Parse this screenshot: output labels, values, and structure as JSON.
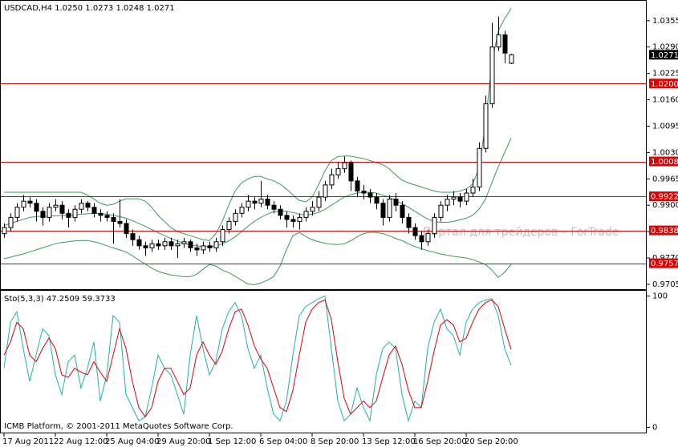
{
  "chart_data": [
    {
      "type": "candlestick",
      "title": "USDCAD,H4  1.0250 1.0273 1.0248 1.0271",
      "watermark": "Портал для трейдеров – ForTrade",
      "categories": [
        "17 Aug 2011",
        null,
        null,
        null,
        null,
        null,
        null,
        null,
        "22 Aug 12:00",
        null,
        null,
        null,
        null,
        null,
        null,
        null,
        "25 Aug 04:00",
        null,
        null,
        null,
        null,
        null,
        null,
        null,
        "29 Aug 20:00",
        null,
        null,
        null,
        null,
        null,
        null,
        null,
        "1 Sep 12:00",
        null,
        null,
        null,
        null,
        null,
        null,
        null,
        "6 Sep 04:00",
        null,
        null,
        null,
        null,
        null,
        null,
        null,
        "8 Sep 20:00",
        null,
        null,
        null,
        null,
        null,
        null,
        null,
        "13 Sep 12:00",
        null,
        null,
        null,
        null,
        null,
        null,
        null,
        "16 Sep 20:00",
        null,
        null,
        null,
        null,
        null,
        null,
        null,
        "20 Sep 20:00",
        null,
        null,
        null,
        null,
        null,
        null,
        null
      ],
      "open": [
        0.983,
        0.9845,
        0.987,
        0.9895,
        0.991,
        0.9905,
        0.9885,
        0.987,
        0.9895,
        0.99,
        0.988,
        0.987,
        0.989,
        0.9905,
        0.9895,
        0.988,
        0.9875,
        0.987,
        0.986,
        0.9855,
        0.983,
        0.9815,
        0.98,
        0.9795,
        0.9805,
        0.98,
        0.981,
        0.98,
        0.9805,
        0.981,
        0.9795,
        0.979,
        0.98,
        0.9795,
        0.981,
        0.984,
        0.986,
        0.988,
        0.9895,
        0.991,
        0.9905,
        0.9915,
        0.99,
        0.989,
        0.9875,
        0.9865,
        0.986,
        0.987,
        0.9885,
        0.9895,
        0.992,
        0.995,
        0.9975,
        0.999,
        1.0005,
        0.996,
        0.9935,
        0.993,
        0.992,
        0.9905,
        0.987,
        0.9915,
        0.99,
        0.987,
        0.9845,
        0.9825,
        0.981,
        0.983,
        0.987,
        0.99,
        0.9915,
        0.992,
        0.991,
        0.993,
        0.9945,
        1.004,
        1.015,
        1.029,
        1.032,
        1.025
      ],
      "high": [
        0.9855,
        0.988,
        0.9905,
        0.9925,
        0.992,
        0.9915,
        0.9895,
        0.9905,
        0.9915,
        0.991,
        0.989,
        0.99,
        0.9915,
        0.991,
        0.9905,
        0.989,
        0.9885,
        0.988,
        0.9915,
        0.9865,
        0.984,
        0.9825,
        0.981,
        0.9815,
        0.9815,
        0.982,
        0.982,
        0.9815,
        0.982,
        0.9815,
        0.9805,
        0.981,
        0.981,
        0.982,
        0.985,
        0.987,
        0.989,
        0.9905,
        0.9925,
        0.992,
        0.996,
        0.9925,
        0.991,
        0.99,
        0.9885,
        0.9875,
        0.988,
        0.9895,
        0.991,
        0.9935,
        0.996,
        0.999,
        1.0005,
        1.002,
        1.001,
        0.997,
        0.995,
        0.994,
        0.993,
        0.9915,
        0.9925,
        0.993,
        0.991,
        0.988,
        0.9855,
        0.9835,
        0.984,
        0.988,
        0.991,
        0.9925,
        0.9935,
        0.993,
        0.994,
        0.9965,
        1.0055,
        1.017,
        1.035,
        1.0365,
        1.033,
        1.0273
      ],
      "low": [
        0.982,
        0.9835,
        0.986,
        0.9885,
        0.9895,
        0.986,
        0.985,
        0.986,
        0.9885,
        0.9865,
        0.9845,
        0.986,
        0.988,
        0.9885,
        0.987,
        0.986,
        0.986,
        0.9805,
        0.9845,
        0.982,
        0.98,
        0.979,
        0.9775,
        0.9785,
        0.979,
        0.979,
        0.979,
        0.977,
        0.9795,
        0.9785,
        0.9775,
        0.978,
        0.9785,
        0.9785,
        0.98,
        0.983,
        0.985,
        0.987,
        0.9885,
        0.989,
        0.9895,
        0.989,
        0.988,
        0.9865,
        0.9845,
        0.9845,
        0.984,
        0.986,
        0.9875,
        0.9885,
        0.991,
        0.994,
        0.9965,
        0.998,
        0.9935,
        0.992,
        0.9915,
        0.9905,
        0.989,
        0.985,
        0.986,
        0.9885,
        0.9855,
        0.983,
        0.9815,
        0.979,
        0.98,
        0.982,
        0.986,
        0.9885,
        0.99,
        0.9895,
        0.99,
        0.992,
        0.9935,
        1.003,
        1.014,
        1.028,
        1.025,
        1.0248
      ],
      "close": [
        0.9845,
        0.987,
        0.9895,
        0.991,
        0.9905,
        0.9885,
        0.987,
        0.9895,
        0.99,
        0.988,
        0.987,
        0.989,
        0.9905,
        0.9895,
        0.988,
        0.9875,
        0.987,
        0.986,
        0.9855,
        0.983,
        0.9815,
        0.98,
        0.9795,
        0.9805,
        0.98,
        0.981,
        0.98,
        0.9805,
        0.981,
        0.9795,
        0.979,
        0.98,
        0.9795,
        0.981,
        0.984,
        0.986,
        0.988,
        0.9895,
        0.991,
        0.9905,
        0.9915,
        0.99,
        0.989,
        0.9875,
        0.9865,
        0.986,
        0.987,
        0.9885,
        0.9895,
        0.992,
        0.995,
        0.9975,
        0.999,
        1.0005,
        0.996,
        0.9935,
        0.993,
        0.992,
        0.9905,
        0.987,
        0.9915,
        0.99,
        0.987,
        0.9845,
        0.9825,
        0.981,
        0.983,
        0.987,
        0.99,
        0.9915,
        0.992,
        0.991,
        0.993,
        0.9945,
        1.004,
        1.015,
        1.029,
        1.032,
        1.0275,
        1.0271
      ],
      "bands": [
        {
          "color": "#3a9a5a",
          "values": [
            0.9932,
            0.9932,
            0.9932,
            0.9932,
            0.9932,
            0.9932,
            0.9932,
            0.9932,
            0.9932,
            0.9932,
            0.9932,
            0.9932,
            0.9932,
            0.9925,
            0.9915,
            0.9905,
            0.99,
            0.9902,
            0.991,
            0.9916,
            0.9916,
            0.9916,
            0.991,
            0.9895,
            0.9875,
            0.986,
            0.9845,
            0.9835,
            0.983,
            0.9825,
            0.982,
            0.9815,
            0.9813,
            0.983,
            0.986,
            0.99,
            0.9935,
            0.9955,
            0.9965,
            0.9971,
            0.9971,
            0.9965,
            0.996,
            0.9952,
            0.994,
            0.9925,
            0.9912,
            0.9908,
            0.992,
            0.995,
            0.9985,
            1.001,
            1.002,
            1.0021,
            1.0021,
            1.0018,
            1.0015,
            1.001,
            1.0005,
            1.0,
            0.999,
            0.9975,
            0.9962,
            0.9955,
            0.995,
            0.9945,
            0.994,
            0.9935,
            0.9932,
            0.9932,
            0.9932,
            0.9935,
            0.994,
            0.9952,
            0.999,
            1.01,
            1.025,
            1.033,
            1.036,
            1.0385
          ]
        },
        {
          "color": "#3a9a5a",
          "values": [
            0.985,
            0.9855,
            0.986,
            0.9865,
            0.987,
            0.9872,
            0.9873,
            0.9873,
            0.9874,
            0.9875,
            0.9875,
            0.9876,
            0.9878,
            0.9879,
            0.988,
            0.988,
            0.9878,
            0.9875,
            0.9872,
            0.9868,
            0.9862,
            0.9855,
            0.9848,
            0.984,
            0.9832,
            0.9825,
            0.9818,
            0.9812,
            0.9806,
            0.9802,
            0.98,
            0.9798,
            0.9798,
            0.98,
            0.9805,
            0.9812,
            0.9822,
            0.9835,
            0.9848,
            0.986,
            0.987,
            0.9878,
            0.9884,
            0.9886,
            0.9885,
            0.9882,
            0.9878,
            0.9876,
            0.9878,
            0.9882,
            0.989,
            0.99,
            0.991,
            0.992,
            0.9926,
            0.993,
            0.9932,
            0.9932,
            0.993,
            0.9925,
            0.992,
            0.9912,
            0.9904,
            0.9895,
            0.9885,
            0.9875,
            0.9866,
            0.986,
            0.9858,
            0.9858,
            0.986,
            0.9864,
            0.9868,
            0.9875,
            0.989,
            0.9915,
            0.9955,
            0.9995,
            1.003,
            1.0065
          ]
        },
        {
          "color": "#3a9a5a",
          "values": [
            0.9768,
            0.9772,
            0.9776,
            0.978,
            0.9785,
            0.979,
            0.9795,
            0.98,
            0.9805,
            0.9808,
            0.981,
            0.9812,
            0.9813,
            0.9813,
            0.981,
            0.9806,
            0.98,
            0.9795,
            0.979,
            0.9785,
            0.9775,
            0.9765,
            0.9755,
            0.9745,
            0.9737,
            0.9732,
            0.9728,
            0.9726,
            0.9724,
            0.9724,
            0.973,
            0.9742,
            0.9754,
            0.975,
            0.974,
            0.9734,
            0.9725,
            0.9715,
            0.9706,
            0.9704,
            0.9708,
            0.9715,
            0.9724,
            0.975,
            0.979,
            0.9825,
            0.9833,
            0.9823,
            0.9815,
            0.981,
            0.9806,
            0.9804,
            0.9803,
            0.9805,
            0.9812,
            0.9822,
            0.983,
            0.9833,
            0.9833,
            0.983,
            0.9825,
            0.9818,
            0.9813,
            0.9805,
            0.9798,
            0.9793,
            0.9788,
            0.9784,
            0.978,
            0.9777,
            0.9774,
            0.9772,
            0.977,
            0.9766,
            0.976,
            0.9754,
            0.974,
            0.9722,
            0.9735,
            0.9754
          ]
        }
      ],
      "levels": [
        {
          "value": 1.02,
          "label": "1.0200"
        },
        {
          "value": 1.0008,
          "label": "1.0008"
        },
        {
          "value": 0.9922,
          "label": "0.9922"
        },
        {
          "value": 0.9838,
          "label": "0.9838"
        },
        {
          "value": 0.9757,
          "label": "0.9757"
        }
      ],
      "level_color": "#e00000",
      "candle_color": "#000000",
      "ylim": [
        0.9695,
        1.0402
      ],
      "yticks": [
        1.0355,
        {
          "value": 1.029,
          "label": "1.0290"
        },
        1.0225,
        {
          "value": 1.016,
          "label": "1.0160"
        },
        1.0095,
        {
          "value": 1.003,
          "label": "1.0030"
        },
        0.9965,
        {
          "value": 0.99,
          "label": "0.9900"
        },
        0.9835,
        {
          "value": 0.977,
          "label": "0.9770"
        },
        0.9705
      ]
    },
    {
      "type": "line",
      "title": "Sto(5,3,3) 47.2509 59.3733",
      "footer": "ICMB Platform, © 2001-2011 MetaQuotes Software Corp.",
      "series": [
        {
          "color": "#20b2aa",
          "values": [
            45,
            80,
            88,
            60,
            35,
            55,
            75,
            70,
            40,
            25,
            50,
            55,
            30,
            45,
            65,
            20,
            40,
            85,
            80,
            25,
            15,
            5,
            8,
            30,
            55,
            45,
            40,
            25,
            10,
            55,
            85,
            60,
            40,
            50,
            75,
            88,
            95,
            85,
            60,
            45,
            55,
            30,
            10,
            5,
            20,
            55,
            85,
            92,
            95,
            98,
            100,
            60,
            20,
            5,
            10,
            30,
            15,
            5,
            40,
            60,
            65,
            60,
            25,
            5,
            20,
            15,
            60,
            80,
            90,
            75,
            70,
            55,
            80,
            90,
            95,
            97,
            98,
            85,
            60,
            47.2509
          ]
        },
        {
          "color": "#e00000",
          "values": [
            55,
            65,
            80,
            75,
            55,
            50,
            60,
            68,
            60,
            40,
            38,
            45,
            42,
            40,
            50,
            42,
            35,
            55,
            75,
            60,
            35,
            15,
            8,
            15,
            35,
            45,
            45,
            35,
            25,
            30,
            55,
            65,
            55,
            48,
            58,
            75,
            88,
            90,
            78,
            62,
            52,
            45,
            30,
            15,
            12,
            28,
            55,
            80,
            90,
            95,
            97,
            82,
            50,
            22,
            10,
            15,
            20,
            15,
            20,
            38,
            55,
            62,
            48,
            28,
            15,
            15,
            35,
            58,
            78,
            82,
            78,
            65,
            68,
            80,
            90,
            95,
            97,
            92,
            75,
            59.3733
          ]
        }
      ],
      "ylim": [
        -4,
        104
      ],
      "yticks": [
        0,
        100
      ]
    }
  ]
}
